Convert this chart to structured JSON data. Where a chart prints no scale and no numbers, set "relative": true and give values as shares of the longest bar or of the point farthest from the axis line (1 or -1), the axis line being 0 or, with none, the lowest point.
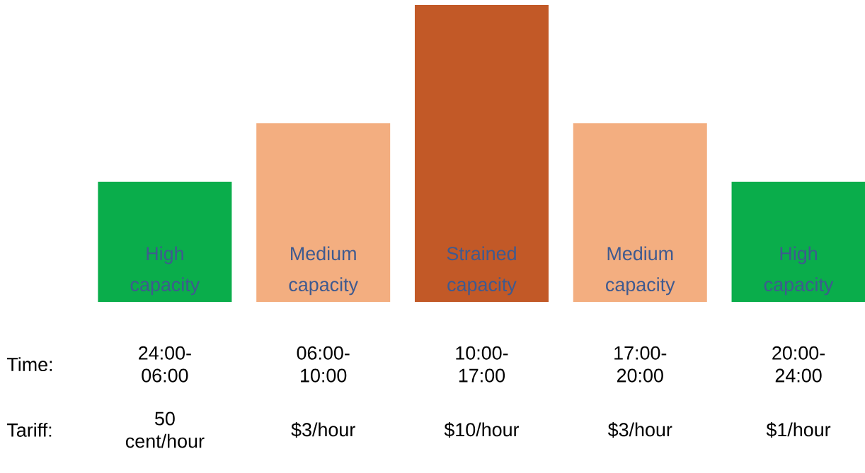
{
  "chart_data": {
    "type": "bar",
    "relative": true,
    "categories": [
      "High capacity",
      "Medium capacity",
      "Strained capacity",
      "Medium capacity",
      "High capacity"
    ],
    "values": [
      0.405,
      0.602,
      1,
      0.602,
      0.405
    ],
    "colors": [
      "#0aad4b",
      "#f3ae80",
      "#c25927",
      "#f3ae80",
      "#0aad4b"
    ],
    "annotations": [
      "Time:",
      "24:00-06:00",
      "06:00-10:00",
      "10:00-17:00",
      "17:00-20:00",
      "20:00-24:00",
      "Tariff:",
      "50 cent/hour",
      "$3/hour",
      "$10/hour",
      "$3/hour",
      "$1/hour"
    ]
  }
}
